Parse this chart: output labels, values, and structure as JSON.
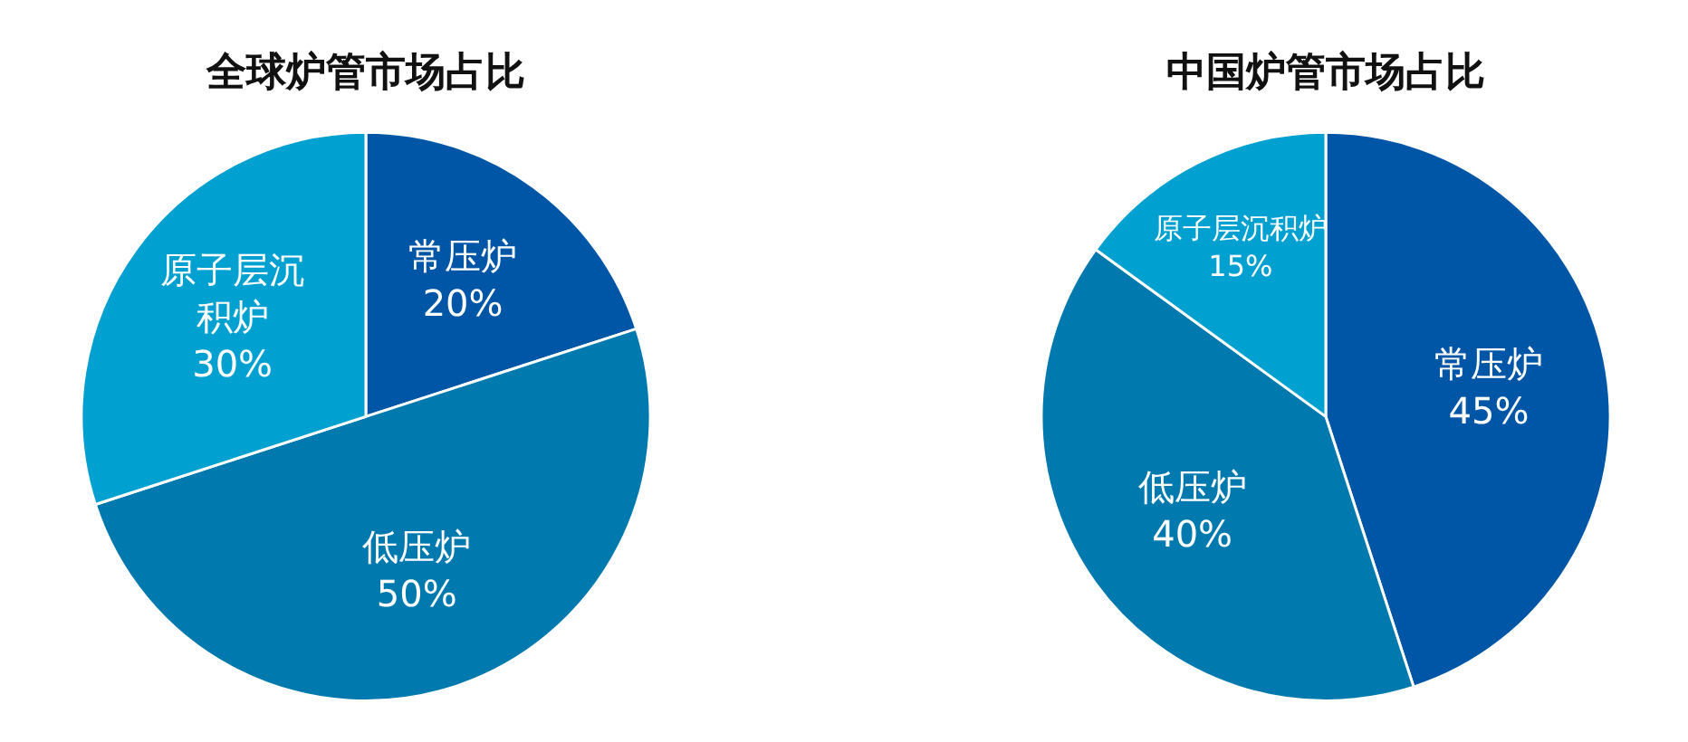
{
  "chart_data": [
    {
      "type": "pie",
      "title": "全球炉管市场占比",
      "categories": [
        "常压炉",
        "低压炉",
        "原子层沉积炉"
      ],
      "values": [
        20,
        50,
        30
      ],
      "colors": [
        "#0056a6",
        "#0079ae",
        "#00a1d1"
      ],
      "value_labels": [
        "20%",
        "50%",
        "30%"
      ]
    },
    {
      "type": "pie",
      "title": "中国炉管市场占比",
      "categories": [
        "常压炉",
        "低压炉",
        "原子层沉积炉"
      ],
      "values": [
        45,
        40,
        15
      ],
      "colors": [
        "#0056a6",
        "#0079ae",
        "#00a1d1"
      ],
      "value_labels": [
        "45%",
        "40%",
        "15%"
      ]
    }
  ]
}
